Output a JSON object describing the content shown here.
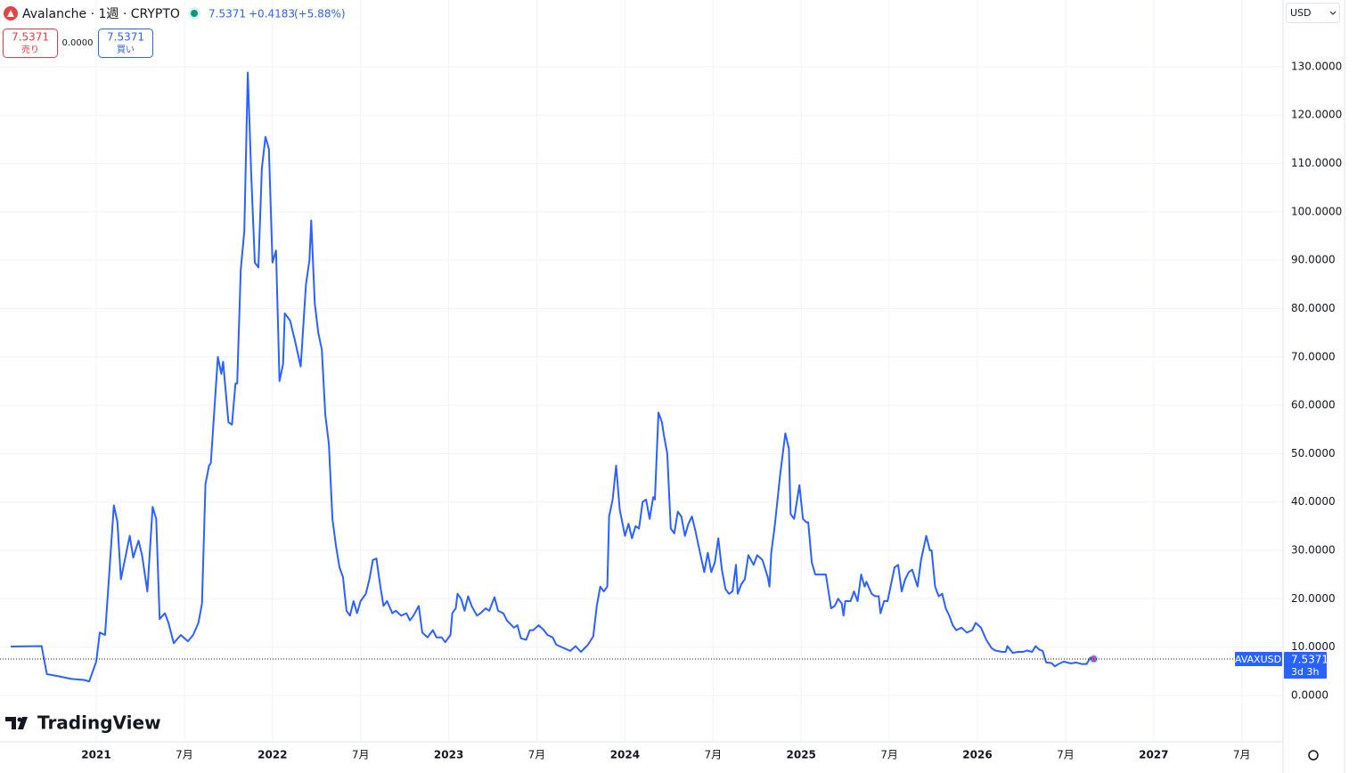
{
  "toolbar": {
    "symbol_title": "Avalanche · 1週 · CRYPTO",
    "price": "7.5371",
    "change": "+0.4183",
    "change_pct": "(+5.88%)",
    "sell_price": "7.5371",
    "sell_label": "売り",
    "spread": "0.0000",
    "buy_price": "7.5371",
    "buy_label": "買い",
    "currency": "USD"
  },
  "logo": "TradingView",
  "chart_data": {
    "type": "line",
    "x": [
      2020.515,
      2020.69,
      2020.72,
      2020.78,
      2020.86,
      2020.93,
      2020.96,
      2021.0,
      2021.02,
      2021.05,
      2021.07,
      2021.1,
      2021.12,
      2021.14,
      2021.19,
      2021.21,
      2021.24,
      2021.26,
      2021.29,
      2021.32,
      2021.34,
      2021.36,
      2021.39,
      2021.41,
      2021.44,
      2021.48,
      2021.52,
      2021.55,
      2021.58,
      2021.6,
      2021.62,
      2021.64,
      2021.65,
      2021.69,
      2021.71,
      2021.72,
      2021.75,
      2021.77,
      2021.79,
      2021.8,
      2021.82,
      2021.84,
      2021.86,
      2021.88,
      2021.9,
      2021.92,
      2021.94,
      2021.96,
      2021.98,
      2022.0,
      2022.02,
      2022.04,
      2022.06,
      2022.07,
      2022.1,
      2022.13,
      2022.16,
      2022.19,
      2022.21,
      2022.22,
      2022.24,
      2022.26,
      2022.28,
      2022.3,
      2022.32,
      2022.34,
      2022.36,
      2022.38,
      2022.4,
      2022.42,
      2022.44,
      2022.46,
      2022.48,
      2022.5,
      2022.53,
      2022.55,
      2022.57,
      2022.59,
      2022.61,
      2022.63,
      2022.65,
      2022.68,
      2022.7,
      2022.73,
      2022.76,
      2022.78,
      2022.8,
      2022.83,
      2022.85,
      2022.88,
      2022.91,
      2022.93,
      2022.96,
      2022.98,
      2023.01,
      2023.02,
      2023.04,
      2023.05,
      2023.07,
      2023.09,
      2023.11,
      2023.13,
      2023.16,
      2023.18,
      2023.21,
      2023.23,
      2023.26,
      2023.28,
      2023.31,
      2023.33,
      2023.37,
      2023.39,
      2023.41,
      2023.44,
      2023.46,
      2023.48,
      2023.51,
      2023.54,
      2023.56,
      2023.59,
      2023.61,
      2023.64,
      2023.69,
      2023.72,
      2023.75,
      2023.79,
      2023.82,
      2023.84,
      2023.86,
      2023.88,
      2023.9,
      2023.91,
      2023.93,
      2023.95,
      2023.97,
      2024.0,
      2024.02,
      2024.04,
      2024.06,
      2024.08,
      2024.1,
      2024.12,
      2024.14,
      2024.16,
      2024.17,
      2024.19,
      2024.21,
      2024.22,
      2024.24,
      2024.26,
      2024.28,
      2024.3,
      2024.32,
      2024.34,
      2024.36,
      2024.38,
      2024.4,
      2024.42,
      2024.45,
      2024.47,
      2024.49,
      2024.51,
      2024.53,
      2024.55,
      2024.57,
      2024.59,
      2024.61,
      2024.63,
      2024.64,
      2024.66,
      2024.68,
      2024.7,
      2024.73,
      2024.75,
      2024.78,
      2024.81,
      2024.82,
      2024.83,
      2024.85,
      2024.88,
      2024.91,
      2024.93,
      2024.94,
      2024.96,
      2024.99,
      2025.01,
      2025.03,
      2025.04,
      2025.06,
      2025.08,
      2025.11,
      2025.14,
      2025.17,
      2025.19,
      2025.21,
      2025.23,
      2025.24,
      2025.25,
      2025.28,
      2025.3,
      2025.32,
      2025.34,
      2025.36,
      2025.37,
      2025.4,
      2025.42,
      2025.44,
      2025.45,
      2025.47,
      2025.49,
      2025.51,
      2025.53,
      2025.55,
      2025.57,
      2025.59,
      2025.61,
      2025.63,
      2025.66,
      2025.68,
      2025.71,
      2025.73,
      2025.74,
      2025.76,
      2025.78,
      2025.8,
      2025.82,
      2025.84,
      2025.86,
      2025.88,
      2025.91,
      2025.94,
      2025.97,
      2025.99,
      2026.02,
      2026.05,
      2026.08,
      2026.1,
      2026.14,
      2026.16,
      2026.17,
      2026.2,
      2026.23,
      2026.26,
      2026.28,
      2026.31,
      2026.33,
      2026.35,
      2026.37,
      2026.39,
      2026.42,
      2026.44,
      2026.46,
      2026.49,
      2026.53,
      2026.56,
      2026.59,
      2026.62,
      2026.64,
      2026.66
    ],
    "series": [
      {
        "name": "AVAXUSD",
        "color": "#2962ff",
        "values": [
          10.1,
          10.2,
          4.4,
          4.0,
          3.4,
          3.2,
          2.9,
          7,
          13,
          12.5,
          23,
          39.3,
          36,
          24,
          33,
          28.5,
          32,
          29,
          21.5,
          39,
          36.5,
          15.8,
          17,
          15,
          10.8,
          12.5,
          11.2,
          12.5,
          15,
          19,
          43.7,
          47.5,
          48,
          70,
          66.5,
          69,
          56.5,
          56,
          64.5,
          64.5,
          88,
          96,
          128.8,
          107,
          89.5,
          88.5,
          109,
          115.5,
          113,
          89.5,
          92,
          65,
          68.5,
          79,
          77.5,
          73,
          68,
          85,
          90,
          98.2,
          81,
          75,
          71.5,
          58,
          52,
          36.5,
          31,
          26.5,
          24.5,
          17.5,
          16.5,
          19.5,
          17,
          19.5,
          21,
          24,
          28,
          28.3,
          23,
          18.5,
          19.5,
          17,
          17.5,
          16.5,
          17,
          15.5,
          16.5,
          18.5,
          13,
          12,
          13.5,
          12,
          12,
          11,
          12.5,
          17,
          18,
          21,
          20,
          17.5,
          20.5,
          18.5,
          16.5,
          17,
          18,
          17.5,
          20.3,
          17.5,
          17,
          15.5,
          14,
          14.5,
          11.8,
          11.5,
          13.5,
          13.5,
          14.5,
          13.5,
          12.5,
          12,
          10.5,
          10,
          9.2,
          10.2,
          9,
          10.5,
          12.2,
          18.5,
          22.5,
          21.5,
          22.5,
          37,
          40.5,
          47.5,
          38.5,
          33,
          35.5,
          32.5,
          35,
          34.5,
          40,
          40.5,
          36.5,
          41,
          40.5,
          58.5,
          56.5,
          54,
          50,
          34.5,
          33.5,
          38,
          37,
          33,
          35.5,
          37,
          34,
          30.5,
          25.5,
          29.5,
          25.5,
          27.5,
          32.5,
          26,
          22,
          21,
          21.5,
          27,
          21,
          23,
          24,
          29,
          27,
          29,
          28,
          24.5,
          22.5,
          29.5,
          35,
          45.5,
          54.2,
          51,
          37.5,
          36.5,
          43.5,
          36.5,
          35.8,
          35.8,
          27.5,
          25,
          25,
          25,
          18,
          18.5,
          20,
          19,
          16.5,
          19.5,
          19.5,
          21.5,
          19.5,
          25,
          22.5,
          23.5,
          21,
          20.5,
          20.5,
          17,
          19.5,
          19.5,
          23,
          26.5,
          27,
          21.5,
          24,
          25.5,
          26,
          22.5,
          28,
          33,
          30,
          30,
          22.5,
          20.5,
          21,
          18,
          16.5,
          14.5,
          13.5,
          14,
          13,
          13.5,
          15,
          14,
          11.5,
          9.8,
          9.3,
          9,
          9,
          10.2,
          8.8,
          9,
          9,
          9.3,
          9,
          10.2,
          9.5,
          9.2,
          6.8,
          6.7,
          6,
          6.5,
          7,
          6.6,
          6.8,
          6.5,
          6.5,
          7.8,
          7.54
        ]
      }
    ],
    "last_value": {
      "value": 7.5371,
      "label": "7.5371"
    },
    "countdown": "3d 3h",
    "xlim": [
      2020.454,
      2027.734
    ],
    "ylim": [
      -9.6,
      143.8
    ],
    "xticks": [
      2021,
      {
        "value": 2021.5,
        "label": "7月"
      },
      2022,
      {
        "value": 2022.5,
        "label": "7月"
      },
      2023,
      {
        "value": 2023.5,
        "label": "7月"
      },
      2024,
      {
        "value": 2024.5,
        "label": "7月"
      },
      2025,
      {
        "value": 2025.5,
        "label": "7月"
      },
      2026,
      {
        "value": 2026.5,
        "label": "7月"
      },
      2027,
      {
        "value": 2027.5,
        "label": "7月"
      }
    ],
    "yticks": [
      {
        "value": 0,
        "label": "0.0000"
      },
      {
        "value": 10,
        "label": "10.0000"
      },
      {
        "value": 20,
        "label": "20.0000"
      },
      {
        "value": 30,
        "label": "30.0000"
      },
      {
        "value": 40,
        "label": "40.0000"
      },
      {
        "value": 50,
        "label": "50.0000"
      },
      {
        "value": 60,
        "label": "60.0000"
      },
      {
        "value": 70,
        "label": "70.0000"
      },
      {
        "value": 80,
        "label": "80.0000"
      },
      {
        "value": 90,
        "label": "90.0000"
      },
      {
        "value": 100,
        "label": "100.0000"
      },
      {
        "value": 110,
        "label": "110.0000"
      },
      {
        "value": 120,
        "label": "120.0000"
      },
      {
        "value": 130,
        "label": "130.0000"
      }
    ],
    "grid": true
  }
}
